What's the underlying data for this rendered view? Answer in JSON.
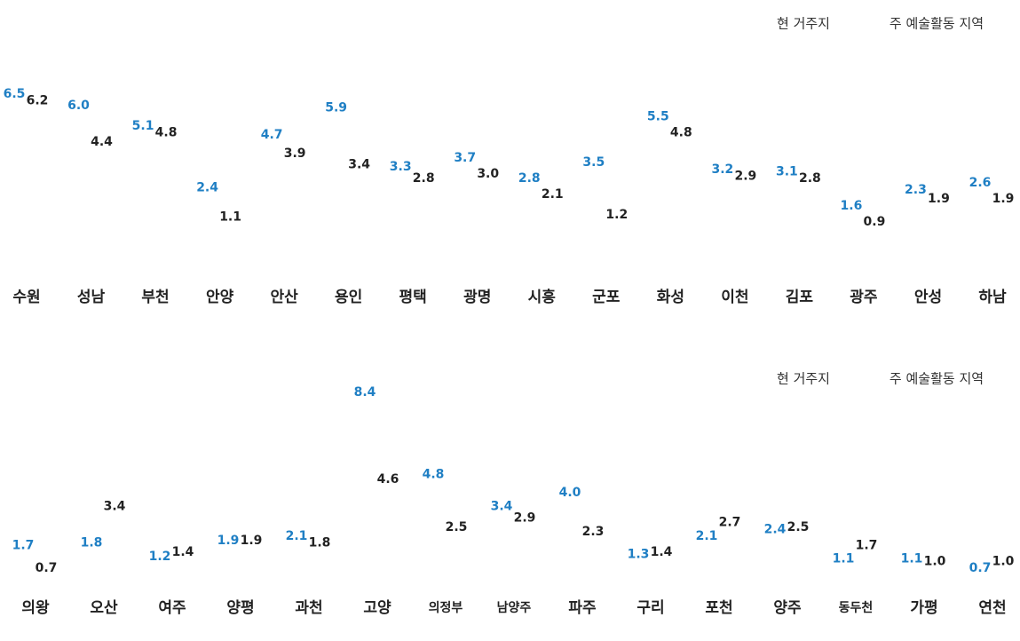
{
  "chart_data": [
    {
      "type": "bar",
      "categories": [
        "수원",
        "성남",
        "부천",
        "안양",
        "안산",
        "용인",
        "평택",
        "광명",
        "시흥",
        "군포",
        "화성",
        "이천",
        "김포",
        "광주",
        "안성",
        "하남"
      ],
      "series": [
        {
          "name": "현 거주지",
          "color": "#222222",
          "values": [
            6.2,
            4.4,
            4.8,
            1.1,
            3.9,
            3.4,
            2.8,
            3.0,
            2.1,
            1.2,
            4.8,
            2.9,
            2.8,
            0.9,
            1.9,
            1.9
          ],
          "value_labels": [
            "6.2",
            "4.4",
            "4.8",
            "1.1",
            "3.9",
            "3.4",
            "2.8",
            "3.0",
            "2.1",
            "1.2",
            "4.8",
            "2.9",
            "2.8",
            "0.9",
            "1.9",
            "1.9"
          ]
        },
        {
          "name": "주 예술활동 지역",
          "color": "#1f7fc4",
          "values": [
            6.5,
            6.0,
            5.1,
            2.4,
            4.7,
            5.9,
            3.3,
            3.7,
            2.8,
            3.5,
            5.5,
            3.2,
            3.1,
            1.6,
            2.3,
            2.6
          ],
          "value_labels": [
            "6.5",
            "6.0",
            "5.1",
            "2.4",
            "4.7",
            "5.9",
            "3.3",
            "3.7",
            "2.8",
            "3.5",
            "5.5",
            "3.2",
            "3.1",
            "1.6",
            "2.3",
            "2.6"
          ]
        }
      ]
    },
    {
      "type": "bar",
      "categories": [
        "의왕",
        "오산",
        "여주",
        "양평",
        "과천",
        "고양",
        "의정부",
        "남양주",
        "파주",
        "구리",
        "포천",
        "양주",
        "동두천",
        "가평",
        "연천"
      ],
      "series": [
        {
          "name": "현 거주지",
          "color": "#222222",
          "values": [
            0.7,
            3.4,
            1.4,
            1.9,
            1.8,
            4.6,
            2.5,
            2.9,
            2.3,
            1.4,
            2.7,
            2.5,
            1.7,
            1.0,
            1.0
          ],
          "value_labels": [
            "0.7",
            "3.4",
            "1.4",
            "1.9",
            "1.8",
            "4.6",
            "2.5",
            "2.9",
            "2.3",
            "1.4",
            "2.7",
            "2.5",
            "1.7",
            "1.0",
            "1.0"
          ]
        },
        {
          "name": "주 예술활동 지역",
          "color": "#1f7fc4",
          "values": [
            1.7,
            1.8,
            1.2,
            1.9,
            2.1,
            8.4,
            4.8,
            3.4,
            4.0,
            1.3,
            2.1,
            2.4,
            1.1,
            1.1,
            0.7
          ],
          "value_labels": [
            "1.7",
            "1.8",
            "1.2",
            "1.9",
            "2.1",
            "8.4",
            "4.8",
            "3.4",
            "4.0",
            "1.3",
            "2.1",
            "2.4",
            "1.1",
            "1.1",
            "0.7"
          ]
        }
      ]
    }
  ]
}
